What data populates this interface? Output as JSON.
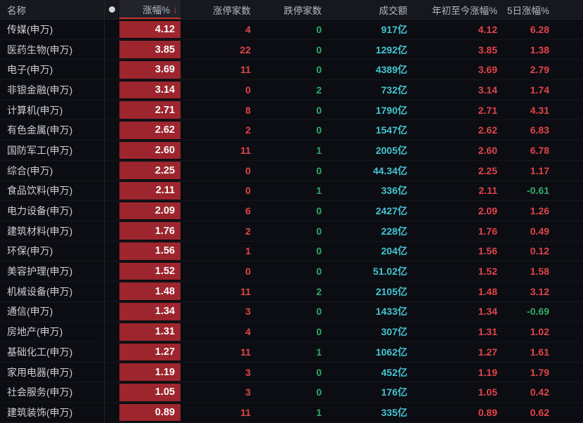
{
  "header": {
    "name": "名称",
    "dot_icon": "circle-indicator",
    "change": "涨幅%",
    "sort_icon": "↓",
    "sort": {
      "column": "涨幅%",
      "direction": "desc"
    },
    "limit_up": "涨停家数",
    "limit_down": "跌停家数",
    "turnover": "成交额",
    "ytd": "年初至今涨幅%",
    "five_day": "5日涨幅%"
  },
  "colors": {
    "red_text": "#e14549",
    "green_text": "#2fae66",
    "cyan_text": "#45c5d2",
    "bar_red": "#9d262e",
    "header_underline_red": "#c2342c",
    "background": "#0c0d12"
  },
  "rows": [
    {
      "name": "传媒(申万)",
      "change": "4.12",
      "limit_up": "4",
      "limit_down": "0",
      "turnover": "917亿",
      "ytd": "4.12",
      "five_day": "6.28"
    },
    {
      "name": "医药生物(申万)",
      "change": "3.85",
      "limit_up": "22",
      "limit_down": "0",
      "turnover": "1292亿",
      "ytd": "3.85",
      "five_day": "1.38"
    },
    {
      "name": "电子(申万)",
      "change": "3.69",
      "limit_up": "11",
      "limit_down": "0",
      "turnover": "4389亿",
      "ytd": "3.69",
      "five_day": "2.79"
    },
    {
      "name": "非银金融(申万)",
      "change": "3.14",
      "limit_up": "0",
      "limit_down": "2",
      "turnover": "732亿",
      "ytd": "3.14",
      "five_day": "1.74"
    },
    {
      "name": "计算机(申万)",
      "change": "2.71",
      "limit_up": "8",
      "limit_down": "0",
      "turnover": "1790亿",
      "ytd": "2.71",
      "five_day": "4.31"
    },
    {
      "name": "有色金属(申万)",
      "change": "2.62",
      "limit_up": "2",
      "limit_down": "0",
      "turnover": "1547亿",
      "ytd": "2.62",
      "five_day": "6.83"
    },
    {
      "name": "国防军工(申万)",
      "change": "2.60",
      "limit_up": "11",
      "limit_down": "1",
      "turnover": "2005亿",
      "ytd": "2.60",
      "five_day": "6.78"
    },
    {
      "name": "综合(申万)",
      "change": "2.25",
      "limit_up": "0",
      "limit_down": "0",
      "turnover": "44.34亿",
      "ytd": "2.25",
      "five_day": "1.17"
    },
    {
      "name": "食品饮料(申万)",
      "change": "2.11",
      "limit_up": "0",
      "limit_down": "1",
      "turnover": "336亿",
      "ytd": "2.11",
      "five_day": "-0.61"
    },
    {
      "name": "电力设备(申万)",
      "change": "2.09",
      "limit_up": "6",
      "limit_down": "0",
      "turnover": "2427亿",
      "ytd": "2.09",
      "five_day": "1.26"
    },
    {
      "name": "建筑材料(申万)",
      "change": "1.76",
      "limit_up": "2",
      "limit_down": "0",
      "turnover": "228亿",
      "ytd": "1.76",
      "five_day": "0.49"
    },
    {
      "name": "环保(申万)",
      "change": "1.56",
      "limit_up": "1",
      "limit_down": "0",
      "turnover": "204亿",
      "ytd": "1.56",
      "five_day": "0.12"
    },
    {
      "name": "美容护理(申万)",
      "change": "1.52",
      "limit_up": "0",
      "limit_down": "0",
      "turnover": "51.02亿",
      "ytd": "1.52",
      "five_day": "1.58"
    },
    {
      "name": "机械设备(申万)",
      "change": "1.48",
      "limit_up": "11",
      "limit_down": "2",
      "turnover": "2105亿",
      "ytd": "1.48",
      "five_day": "3.12"
    },
    {
      "name": "通信(申万)",
      "change": "1.34",
      "limit_up": "3",
      "limit_down": "0",
      "turnover": "1433亿",
      "ytd": "1.34",
      "five_day": "-0.69"
    },
    {
      "name": "房地产(申万)",
      "change": "1.31",
      "limit_up": "4",
      "limit_down": "0",
      "turnover": "307亿",
      "ytd": "1.31",
      "five_day": "1.02"
    },
    {
      "name": "基础化工(申万)",
      "change": "1.27",
      "limit_up": "11",
      "limit_down": "1",
      "turnover": "1062亿",
      "ytd": "1.27",
      "five_day": "1.61"
    },
    {
      "name": "家用电器(申万)",
      "change": "1.19",
      "limit_up": "3",
      "limit_down": "0",
      "turnover": "452亿",
      "ytd": "1.19",
      "five_day": "1.79"
    },
    {
      "name": "社会服务(申万)",
      "change": "1.05",
      "limit_up": "3",
      "limit_down": "0",
      "turnover": "176亿",
      "ytd": "1.05",
      "five_day": "0.42"
    },
    {
      "name": "建筑装饰(申万)",
      "change": "0.89",
      "limit_up": "11",
      "limit_down": "1",
      "turnover": "335亿",
      "ytd": "0.89",
      "five_day": "0.62"
    }
  ]
}
